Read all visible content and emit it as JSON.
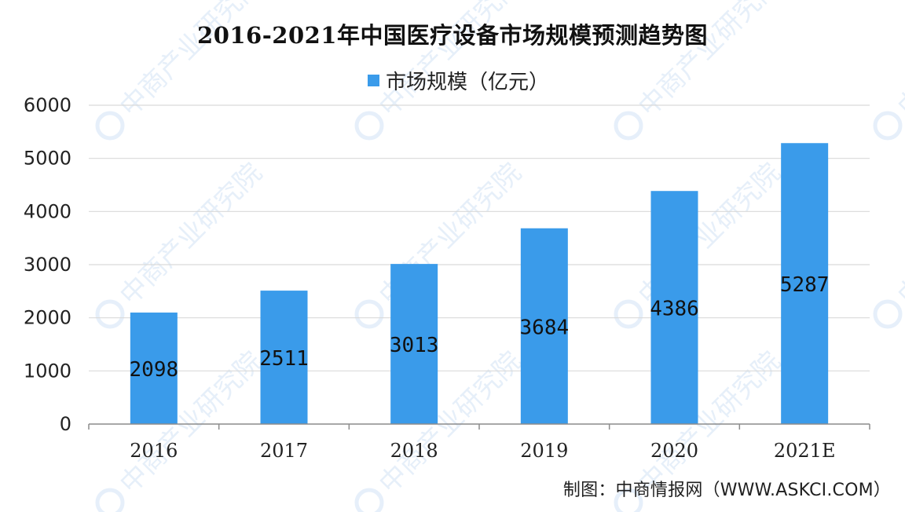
{
  "chart_data": {
    "type": "bar",
    "title": "2016-2021年中国医疗设备市场规模预测趋势图",
    "categories": [
      "2016",
      "2017",
      "2018",
      "2019",
      "2020",
      "2021E"
    ],
    "series": [
      {
        "name": "市场规模（亿元）",
        "values": [
          2098,
          2511,
          3013,
          3684,
          4386,
          5287
        ],
        "color": "#3a9bea"
      }
    ],
    "data_labels": [
      "2098",
      "2511",
      "3013",
      "3684",
      "4386",
      "5287"
    ],
    "ylim": [
      0,
      6000
    ],
    "y_ticks": [
      0,
      1000,
      2000,
      3000,
      4000,
      5000,
      6000
    ],
    "grid": true,
    "legend_position": "top-center"
  },
  "source": "制图：中商情报网（WWW.ASKCI.COM）",
  "watermark": {
    "text": "中商产业研究院",
    "color": "#8fb8e6"
  }
}
